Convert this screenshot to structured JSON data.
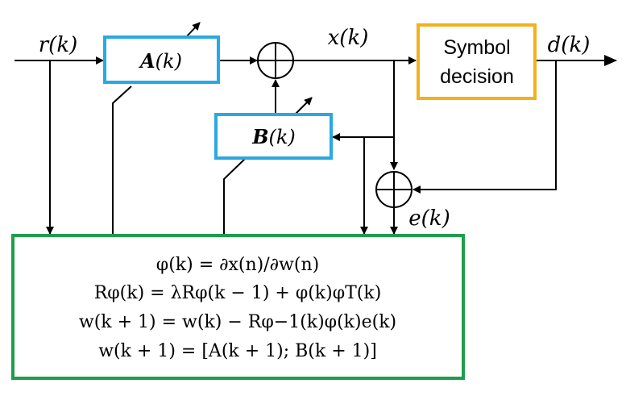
{
  "signals": {
    "r": "r(k)",
    "x": "x(k)",
    "d": "d(k)",
    "e": "e(k)"
  },
  "blocks": {
    "A": {
      "symbol": "A",
      "arg": "(k)",
      "color": "#29a9e1"
    },
    "B": {
      "symbol": "B",
      "arg": "(k)",
      "color": "#29a9e1"
    },
    "decision": {
      "line1": "Symbol",
      "line2": "decision",
      "color": "#f2b21b"
    },
    "update": {
      "color": "#1e9e4a"
    }
  },
  "equations": [
    "φ(k) = ∂x(n)/∂w(n)",
    "Rφ(k) = λRφ(k − 1) + φ(k)φT(k)",
    "w(k + 1) = w(k) − Rφ−1(k)φ(k)e(k)",
    "w(k + 1) = [A(k + 1); B(k + 1)]"
  ],
  "icons": {
    "summer": "summing-junction-icon",
    "adapt": "adaptive-arrow-icon"
  }
}
